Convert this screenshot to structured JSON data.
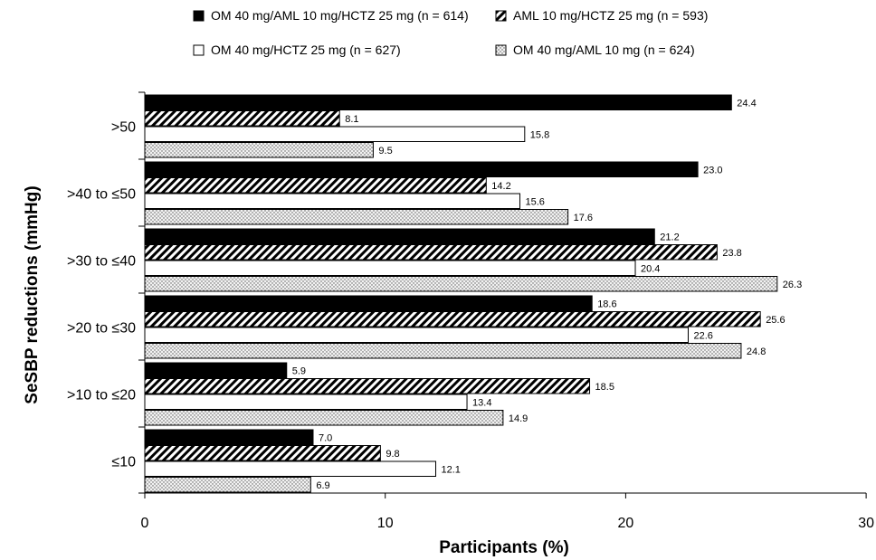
{
  "chart_data": {
    "type": "bar",
    "orientation": "horizontal",
    "xlabel": "Participants (%)",
    "ylabel": "SeSBP reductions (mmHg)",
    "xlim": [
      0,
      30
    ],
    "xticks": [
      "0",
      "10",
      "20",
      "30"
    ],
    "grid": false,
    "legend_position": "top",
    "categories": [
      ">50",
      ">40 to ≤50",
      ">30 to ≤40",
      ">20 to ≤30",
      ">10 to ≤20",
      "≤10"
    ],
    "series": [
      {
        "name": "OM 40 mg/AML 10 mg/HCTZ 25 mg (n = 614)",
        "fill": "solid-black",
        "values": [
          24.4,
          23.0,
          21.2,
          18.6,
          5.9,
          7.0
        ],
        "labels": [
          "24.4",
          "23.0",
          "21.2",
          "18.6",
          "5.9",
          "7.0"
        ]
      },
      {
        "name": "AML 10 mg/HCTZ 25 mg (n = 593)",
        "fill": "diagonal-hatch",
        "values": [
          8.1,
          14.2,
          23.8,
          25.6,
          18.5,
          9.8
        ],
        "labels": [
          "8.1",
          "14.2",
          "23.8",
          "25.6",
          "18.5",
          "9.8"
        ]
      },
      {
        "name": "OM 40 mg/HCTZ 25 mg (n = 627)",
        "fill": "white",
        "values": [
          15.8,
          15.6,
          20.4,
          22.6,
          13.4,
          12.1
        ],
        "labels": [
          "15.8",
          "15.6",
          "20.4",
          "22.6",
          "13.4",
          "12.1"
        ]
      },
      {
        "name": "OM 40 mg/AML 10 mg (n = 624)",
        "fill": "dotted",
        "values": [
          9.5,
          17.6,
          26.3,
          24.8,
          14.9,
          6.9
        ],
        "labels": [
          "9.5",
          "17.6",
          "26.3",
          "24.8",
          "14.9",
          "6.9"
        ]
      }
    ],
    "legend_order": [
      0,
      1,
      2,
      3
    ]
  }
}
